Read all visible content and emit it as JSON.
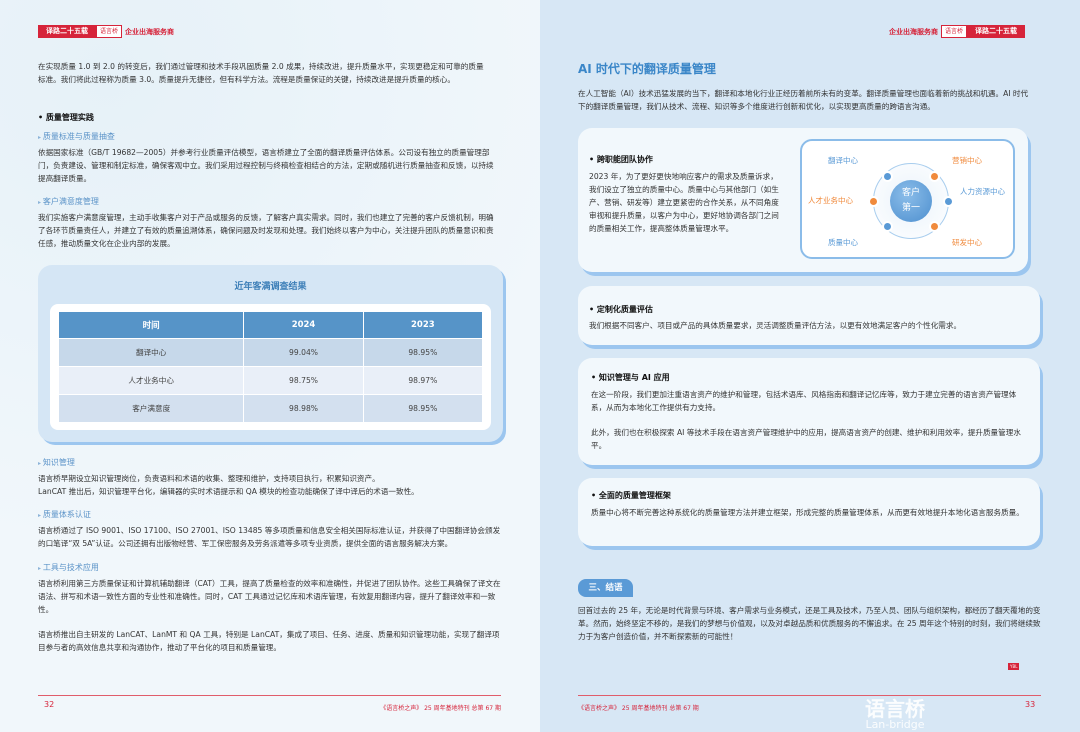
{
  "header": {
    "series": "译路二十五载",
    "logo": "语言桥",
    "section": "企业出海服务商"
  },
  "left": {
    "intro": "在实现质量 1.0 到 2.0 的转变后，我们通过管理和技术手段巩固质量 2.0 成果，持续改进，提升质量水平，实现更稳定和可靠的质量标准。我们将此过程称为质量 3.0。质量提升无捷径，但有科学方法。流程是质量保证的关键，持续改进是提升质量的核心。",
    "heading": "质量管理实践",
    "s1": {
      "title": "质量标准与质量抽查",
      "body": "依据国家标准（GB/T 19682—2005）并参考行业质量评估模型，语言桥建立了全面的翻译质量评估体系。公司设有独立的质量管理部门，负责建设、管理和制定标准，确保客观中立。我们采用过程控制与终稿检查相结合的方法，定期或随机进行质量抽查和反馈，以持续提高翻译质量。"
    },
    "s2": {
      "title": "客户满意度管理",
      "body": "我们实施客户满意度管理，主动手收集客户对于产品或服务的反馈，了解客户真实需求。同时，我们也建立了完善的客户反馈机制，明确了各环节质量责任人，并建立了有效的质量追溯体系，确保问题及时发现和处理。我们始终以客户为中心，关注提升团队的质量意识和责任感，推动质量文化在企业内部的发展。"
    },
    "table": {
      "title": "近年客满调查结果",
      "headers": [
        "时间",
        "2024",
        "2023"
      ],
      "rows": [
        [
          "翻译中心",
          "99.04%",
          "98.95%"
        ],
        [
          "人才业务中心",
          "98.75%",
          "98.97%"
        ],
        [
          "客户满意度",
          "98.98%",
          "98.95%"
        ]
      ]
    },
    "s3": {
      "title": "知识管理",
      "body1": "语言桥早期设立知识管理岗位，负责语料和术语的收集、整理和维护，支持项目执行，积累知识资产。",
      "body2": "LanCAT 推出后，知识管理平台化，编辑器的实时术语提示和 QA 模块的检查功能确保了译中译后的术语一致性。"
    },
    "s4": {
      "title": "质量体系认证",
      "body": "语言桥通过了 ISO 9001、ISO 17100、ISO 27001、ISO 13485 等多项质量和信息安全相关国际标准认证，并获得了中国翻译协会颁发的口笔译“双 5A”认证。公司还拥有出版物经营、军工保密服务及劳务派遣等多项专业资质，提供全面的语言服务解决方案。"
    },
    "s5": {
      "title": "工具与技术应用",
      "body1": "语言桥利用第三方质量保证和计算机辅助翻译（CAT）工具，提高了质量检查的效率和准确性，并促进了团队协作。这些工具确保了译文在语法、拼写和术语一致性方面的专业性和准确性。同时，CAT 工具通过记忆库和术语库管理，有效复用翻译内容，提升了翻译效率和一致性。",
      "body2": "语言桥推出自主研发的 LanCAT、LanMT 和 QA 工具，特别是 LanCAT，集成了项目、任务、进度、质量和知识管理功能，实现了翻译项目参与者的高效信息共享和沟通协作，推动了平台化的项目和质量管理。"
    },
    "page_number": "32",
    "footer": "《语言桥之声》 25 周年基地特刊 总第 67 期"
  },
  "right": {
    "title": "AI 时代下的翻译质量管理",
    "intro": "在人工智能（AI）技术迅猛发展的当下，翻译和本地化行业正经历着前所未有的变革。翻译质量管理也面临着新的挑战和机遇。AI 时代下的翻译质量管理，我们从技术、流程、知识等多个维度进行创新和优化，以实现更高质量的跨语言沟通。",
    "c1": {
      "title": "跨职能团队协作",
      "body": "2023 年，为了更好更快地响应客户的需求及质量诉求，我们设立了独立的质量中心。质量中心与其他部门（如生产、营销、研发等）建立更紧密的合作关系，从不同角度审视和提升质量，以客户为中心，更好地协调各部门之间的质量相关工作，提高整体质量管理水平。"
    },
    "diagram": {
      "center": "客户第一",
      "nodes": [
        "翻译中心",
        "营销中心",
        "人才业务中心",
        "人力资源中心",
        "质量中心",
        "研发中心"
      ],
      "blue": "#5a9ad6",
      "orange": "#f08a3c"
    },
    "c2": {
      "title": "定制化质量评估",
      "body": "我们根据不同客户、项目或产品的具体质量要求，灵活调整质量评估方法，以更有效地满足客户的个性化需求。"
    },
    "c3": {
      "title": "知识管理与 AI 应用",
      "body1": "在这一阶段，我们更加注重语言资产的维护和管理，包括术语库、风格指南和翻译记忆库等，致力于建立完善的语言资产管理体系，从而为本地化工作提供有力支持。",
      "body2": "此外，我们也在积极探索 AI 等技术手段在语言资产管理维护中的应用，提高语言资产的创建、维护和利用效率，提升质量管理水平。"
    },
    "c4": {
      "title": "全面的质量管理框架",
      "body": "质量中心将不断完善这种系统化的质量管理方法并建立框架，形成完整的质量管理体系，从而更有效地提升本地化语言服务质量。"
    },
    "conclusion": {
      "tag": "三、结语",
      "body": "回首过去的 25 年，无论是时代背景与环境、客户需求与业务模式，还是工具及技术，乃至人员、团队与组织架构，都经历了翻天覆地的变革。然而，始终坚定不移的，是我们的梦想与价值观，以及对卓越品质和优质服务的不懈追求。在 25 周年这个特别的时刻，我们将继续致力于为客户创造价值，并不断探索新的可能性！"
    },
    "end_mark": "YBL",
    "page_number": "33",
    "footer": "《语言桥之声》 25 周年基地特刊 总第 67 期",
    "watermark": {
      "cn": "语言桥",
      "en": "Lan-bridge"
    }
  },
  "colors": {
    "brand_red": "#d6243a",
    "accent_blue": "#3a86c8",
    "table_header": "#5694c8"
  }
}
